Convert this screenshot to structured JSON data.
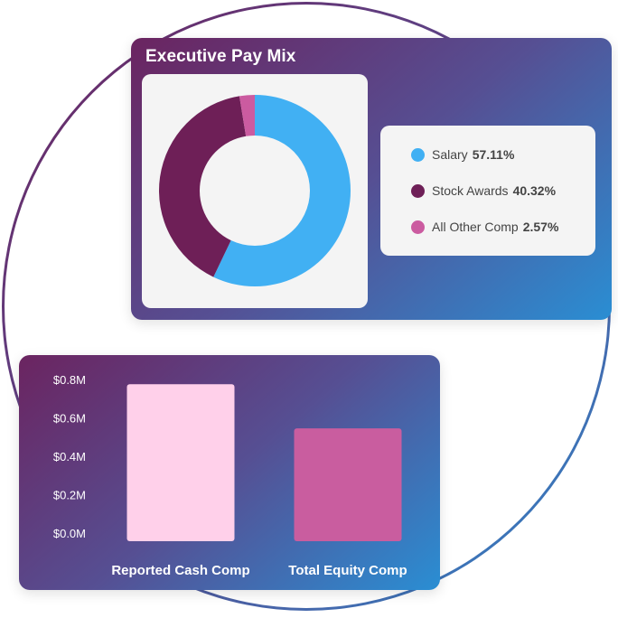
{
  "chart_data": [
    {
      "type": "pie",
      "title": "Executive Pay Mix",
      "donut": true,
      "categories": [
        "Salary",
        "Stock Awards",
        "All Other Comp"
      ],
      "values": [
        57.11,
        40.32,
        2.57
      ],
      "value_labels": [
        "57.11%",
        "40.32%",
        "2.57%"
      ],
      "colors": [
        "#41b0f3",
        "#6e1f57",
        "#cb5ba0"
      ],
      "legend_position": "right"
    },
    {
      "type": "bar",
      "categories": [
        "Reported Cash Comp",
        "Total Equity Comp"
      ],
      "values": [
        0.78,
        0.55
      ],
      "colors": [
        "#ffd0ea",
        "#c95d9f"
      ],
      "ylim": [
        0,
        0.8
      ],
      "yticks": [
        "$0.0M",
        "$0.2M",
        "$0.4M",
        "$0.6M",
        "$0.8M"
      ],
      "ytick_values": [
        0,
        0.2,
        0.4,
        0.6,
        0.8
      ],
      "grid": false
    }
  ]
}
